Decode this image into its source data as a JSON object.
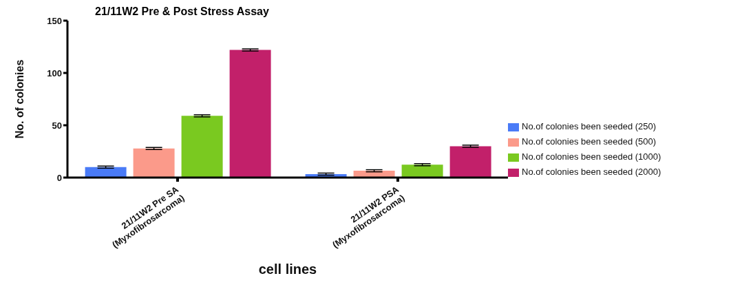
{
  "chart_data": {
    "type": "bar",
    "title": "21/11W2 Pre & Post Stress Assay",
    "xlabel": "cell lines",
    "ylabel": "No. of colonies",
    "categories": [
      "21/11W2 Pre SA (Myxofibrosarcoma)",
      "21/11W2 PSA (Myxofibrosarcoma)"
    ],
    "series": [
      {
        "name": "No.of colonies been seeded (250)",
        "color": "#4a7bf7",
        "values": [
          10,
          3.3
        ],
        "errors": [
          1,
          1
        ]
      },
      {
        "name": "No.of colonies been seeded (500)",
        "color": "#fb9a8a",
        "values": [
          27.8,
          6.5
        ],
        "errors": [
          1,
          1
        ]
      },
      {
        "name": "No.of colonies been seeded (1000)",
        "color": "#7ac920",
        "values": [
          59,
          12.3
        ],
        "errors": [
          1,
          1
        ]
      },
      {
        "name": "No.of colonies been seeded (2000)",
        "color": "#c2206a",
        "values": [
          122,
          30
        ],
        "errors": [
          1,
          1
        ]
      }
    ],
    "ylim": [
      0,
      150
    ],
    "yticks": [
      0,
      50,
      100,
      150
    ],
    "legend": "right"
  }
}
